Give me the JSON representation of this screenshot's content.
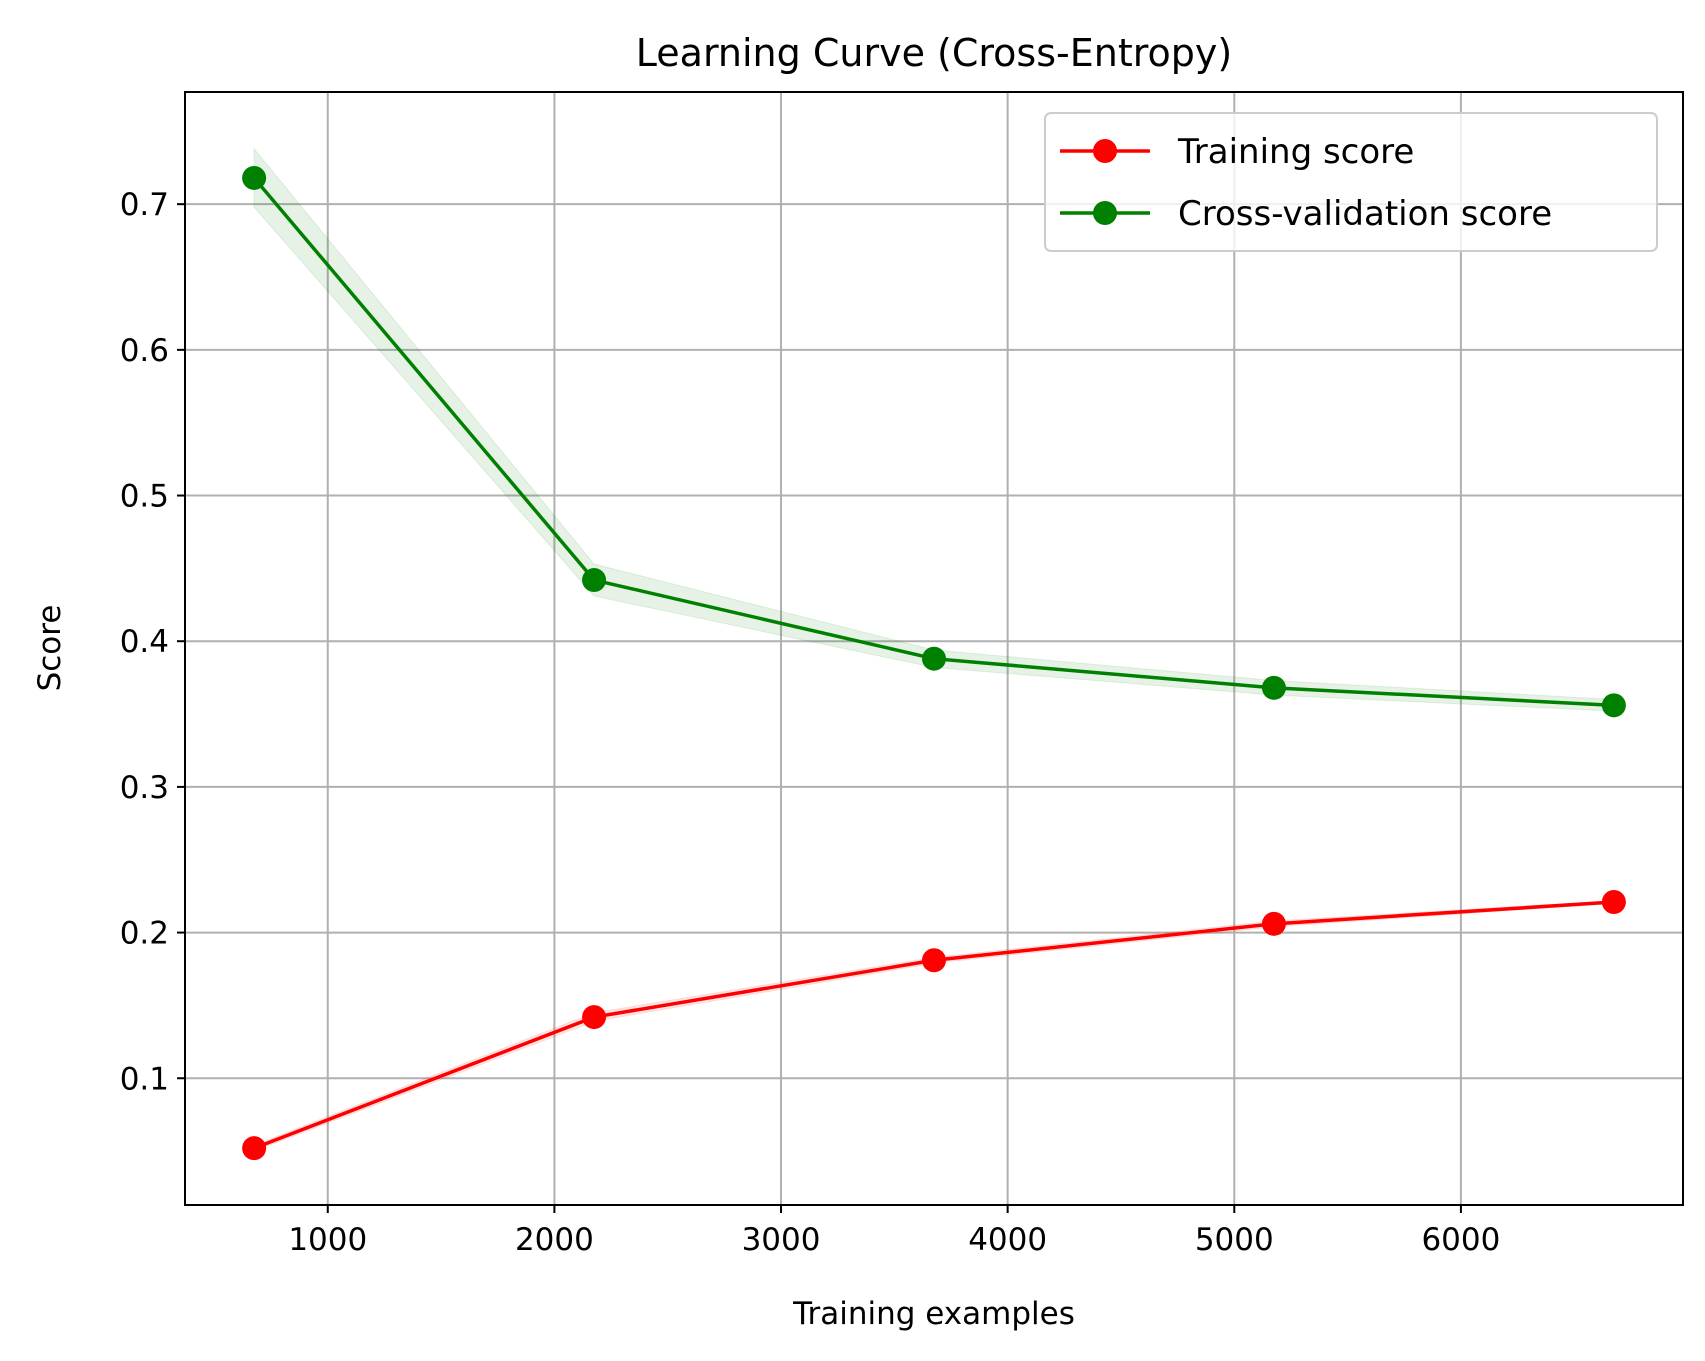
{
  "chart_data": {
    "type": "line",
    "title": "Learning Curve (Cross-Entropy)",
    "xlabel": "Training examples",
    "ylabel": "Score",
    "xlim": [
      370,
      6980
    ],
    "ylim": [
      0.013,
      0.777
    ],
    "xticks": [
      1000,
      2000,
      3000,
      4000,
      5000,
      6000
    ],
    "yticks": [
      0.1,
      0.2,
      0.3,
      0.4,
      0.5,
      0.6,
      0.7
    ],
    "x": [
      675,
      2175,
      3675,
      5175,
      6675
    ],
    "grid": true,
    "legend_position": "top-right",
    "series": [
      {
        "name": "Training score",
        "color": "#ff0000",
        "band_color": "#ff0000",
        "values": [
          0.052,
          0.142,
          0.181,
          0.206,
          0.221
        ],
        "std": [
          0.002,
          0.003,
          0.002,
          0.002,
          0.001
        ]
      },
      {
        "name": "Cross-validation score",
        "color": "#008000",
        "band_color": "#008000",
        "values": [
          0.718,
          0.442,
          0.388,
          0.368,
          0.356
        ],
        "std": [
          0.02,
          0.011,
          0.006,
          0.005,
          0.004
        ]
      }
    ]
  }
}
